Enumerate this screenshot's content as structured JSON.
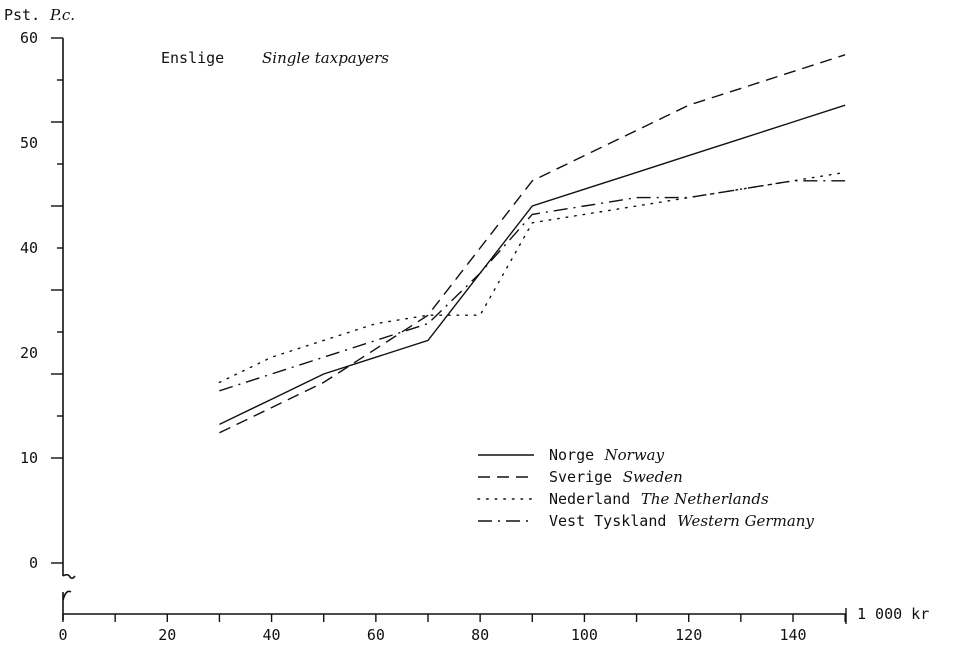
{
  "chart_data": {
    "type": "line",
    "y_unit_label": "Pst.",
    "y_unit_label_en": "P.c.",
    "x_unit_label": "1 000 kr",
    "annotation": "Enslige",
    "annotation_en": "Single taxpayers",
    "y_ticks": [
      "0",
      "10",
      "20",
      "40",
      "50",
      "60"
    ],
    "x_ticks": [
      "0",
      "20",
      "40",
      "60",
      "80",
      "100",
      "120",
      "140"
    ],
    "ylim": [
      0,
      60
    ],
    "xlim": [
      0,
      150
    ],
    "legend_position": "bottom-right",
    "series": [
      {
        "name": "Norge",
        "name_en": "Norway",
        "style": "solid",
        "x": [
          30,
          40,
          50,
          60,
          70,
          80,
          90,
          100,
          110,
          120,
          130,
          140,
          150
        ],
        "y": [
          14,
          17,
          20,
          22,
          24,
          32,
          40,
          42,
          44,
          46,
          48,
          50,
          52
        ]
      },
      {
        "name": "Sverige",
        "name_en": "Sweden",
        "style": "dashed",
        "x": [
          30,
          40,
          50,
          60,
          70,
          80,
          90,
          100,
          110,
          120,
          130,
          140,
          150
        ],
        "y": [
          13,
          16,
          19,
          23,
          27,
          35,
          43,
          46,
          49,
          52,
          54,
          56,
          58
        ]
      },
      {
        "name": "Nederland",
        "name_en": "The Netherlands",
        "style": "dotted",
        "x": [
          30,
          40,
          50,
          60,
          70,
          80,
          90,
          100,
          110,
          120,
          130,
          140,
          150
        ],
        "y": [
          19,
          22,
          24,
          26,
          27,
          27,
          38,
          39,
          40,
          41,
          42,
          43,
          44
        ]
      },
      {
        "name": "Vest Tyskland",
        "name_en": "Western Germany",
        "style": "dashdot",
        "x": [
          30,
          40,
          50,
          60,
          70,
          80,
          90,
          100,
          110,
          120,
          130,
          140,
          150
        ],
        "y": [
          18,
          20,
          22,
          24,
          26,
          32,
          39,
          40,
          41,
          41,
          42,
          43,
          43
        ]
      }
    ]
  }
}
